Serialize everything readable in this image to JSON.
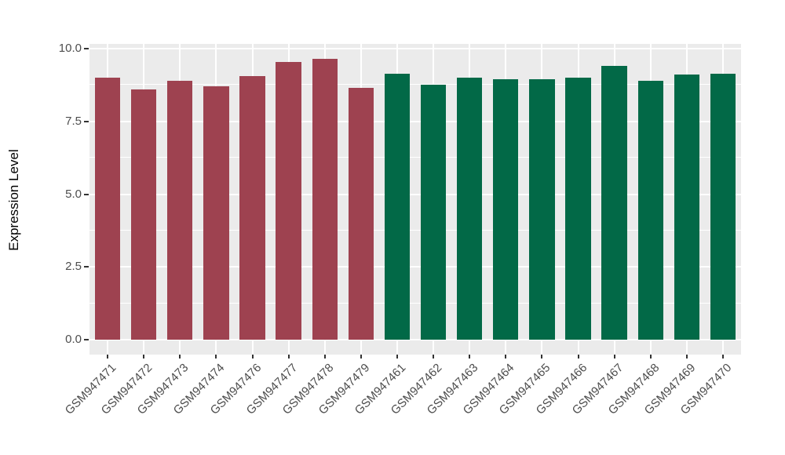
{
  "chart_data": {
    "type": "bar",
    "title": "",
    "xlabel": "",
    "ylabel": "Expression Level",
    "ylim": [
      0,
      10.16
    ],
    "yticks_major": [
      0,
      2.5,
      5,
      7.5,
      10
    ],
    "ytick_labels": [
      "0.0",
      "2.5",
      "5.0",
      "7.5",
      "10.0"
    ],
    "yticks_minor": [
      1.25,
      3.75,
      6.25,
      8.75
    ],
    "grid": true,
    "legend": false,
    "bar_width_fraction": 0.7,
    "colors": {
      "panel_background": "#EBEBEB",
      "gridline": "#FFFFFF",
      "axis_text": "#4D4D4D",
      "tick_mark": "#333333"
    },
    "groups": [
      {
        "name": "left-group",
        "color": "#9E4250",
        "categories": [
          "GSM947471",
          "GSM947472",
          "GSM947473",
          "GSM947474",
          "GSM947476",
          "GSM947477",
          "GSM947478",
          "GSM947479"
        ],
        "values": [
          9.0,
          8.6,
          8.9,
          8.7,
          9.05,
          9.55,
          9.65,
          8.65
        ]
      },
      {
        "name": "right-group",
        "color": "#026947",
        "categories": [
          "GSM947461",
          "GSM947462",
          "GSM947463",
          "GSM947464",
          "GSM947465",
          "GSM947466",
          "GSM947467",
          "GSM947468",
          "GSM947469",
          "GSM947470"
        ],
        "values": [
          9.15,
          8.75,
          9.0,
          8.95,
          8.95,
          9.0,
          9.4,
          8.9,
          9.1,
          9.15
        ]
      }
    ]
  }
}
